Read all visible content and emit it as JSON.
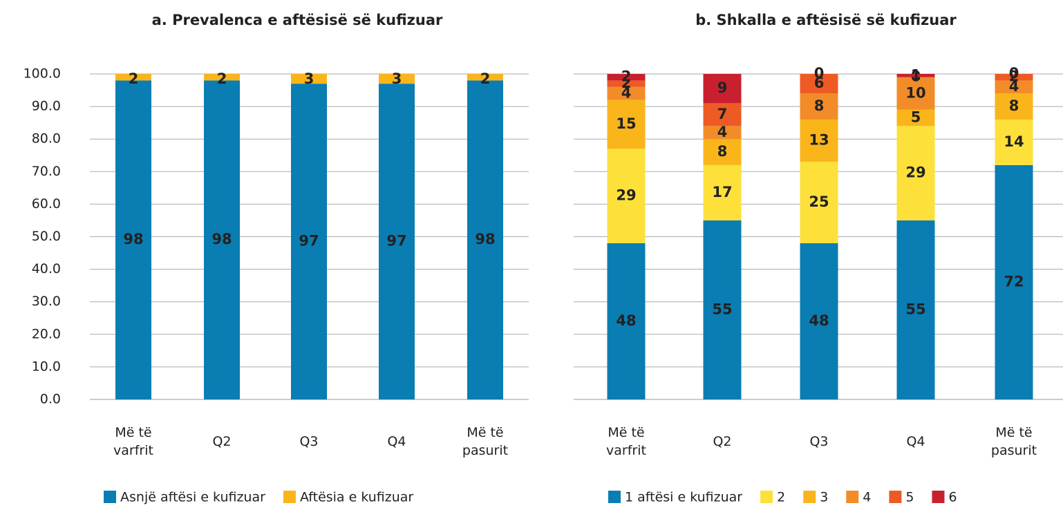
{
  "chart_data": [
    {
      "type": "stacked_bar",
      "title": "a. Prevalenca e aftësisë së kufizuar",
      "categories": [
        "Më të varfrit",
        "Q2",
        "Q3",
        "Q4",
        "Më të pasurit"
      ],
      "series": [
        {
          "name": "Asnjë aftësi e kufizuar",
          "color": "#0a7db3",
          "values": [
            98,
            98,
            97,
            97,
            98
          ]
        },
        {
          "name": "Aftësia e kufizuar",
          "color": "#f9b51a",
          "values": [
            2,
            2,
            3,
            3,
            2
          ]
        }
      ],
      "ylim": [
        0,
        100
      ],
      "yticks": [
        {
          "value": 0,
          "label": "0.0"
        },
        {
          "value": 10,
          "label": "10.0"
        },
        {
          "value": 20,
          "label": "20.0"
        },
        {
          "value": 30,
          "label": "30.0"
        },
        {
          "value": 40,
          "label": "40.0"
        },
        {
          "value": 50,
          "label": "50.0"
        },
        {
          "value": 60,
          "label": "60.0"
        },
        {
          "value": 70,
          "label": "70.0"
        },
        {
          "value": 80,
          "label": "80.0"
        },
        {
          "value": 90,
          "label": "90.0"
        },
        {
          "value": 100,
          "label": "100.0"
        }
      ],
      "show_tick_labels": true,
      "grid": true,
      "legend": "bottom"
    },
    {
      "type": "stacked_bar",
      "title": "b. Shkalla e aftësisë së kufizuar",
      "categories": [
        "Më të varfrit",
        "Q2",
        "Q3",
        "Q4",
        "Më të pasurit"
      ],
      "series": [
        {
          "name": "1 aftësi e kufizuar",
          "color": "#0a7db3",
          "values": [
            48,
            55,
            48,
            55,
            72
          ]
        },
        {
          "name": "2",
          "color": "#fde03a",
          "values": [
            29,
            17,
            25,
            29,
            14
          ]
        },
        {
          "name": "3",
          "color": "#f9b51a",
          "values": [
            15,
            8,
            13,
            5,
            8
          ]
        },
        {
          "name": "4",
          "color": "#f28c28",
          "values": [
            4,
            4,
            8,
            10,
            4
          ]
        },
        {
          "name": "5",
          "color": "#ee5a24",
          "values": [
            2,
            7,
            6,
            0,
            2
          ]
        },
        {
          "name": "6",
          "color": "#c8202f",
          "values": [
            2,
            9,
            0,
            1,
            0
          ]
        }
      ],
      "ylim": [
        0,
        100
      ],
      "yticks": [
        0,
        10,
        20,
        30,
        40,
        50,
        60,
        70,
        80,
        90,
        100
      ],
      "show_tick_labels": false,
      "grid": true,
      "legend": "bottom"
    }
  ]
}
